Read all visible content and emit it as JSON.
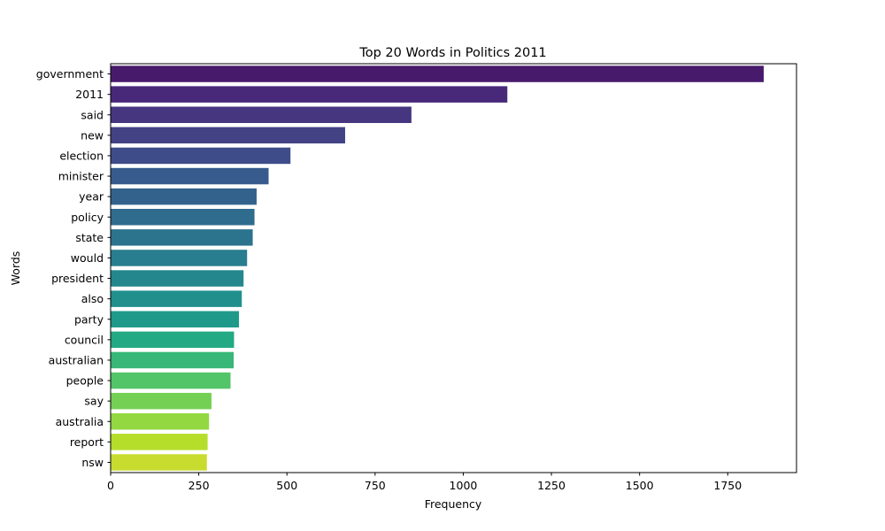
{
  "chart_data": {
    "type": "bar",
    "orientation": "horizontal",
    "title": "Top 20 Words in Politics 2011",
    "xlabel": "Frequency",
    "ylabel": "Words",
    "xlim": [
      0,
      1945
    ],
    "xticks": [
      0,
      250,
      500,
      750,
      1000,
      1250,
      1500,
      1750
    ],
    "grid": false,
    "legend": "none",
    "categories": [
      "government",
      "2011",
      "said",
      "new",
      "election",
      "minister",
      "year",
      "policy",
      "state",
      "would",
      "president",
      "also",
      "party",
      "council",
      "australian",
      "people",
      "say",
      "australia",
      "report",
      "nsw"
    ],
    "values": [
      1852,
      1125,
      853,
      665,
      510,
      448,
      414,
      408,
      403,
      387,
      377,
      372,
      364,
      350,
      349,
      340,
      286,
      279,
      275,
      273
    ],
    "colors": [
      "#481a6c",
      "#482979",
      "#46357f",
      "#424285",
      "#3e4c8a",
      "#385b8d",
      "#33638d",
      "#2f6c8e",
      "#2c738e",
      "#287d8e",
      "#24878e",
      "#21908d",
      "#1f9a8a",
      "#23a983",
      "#38b778",
      "#52c569",
      "#74d055",
      "#93d741",
      "#b5de2b",
      "#c8dc30"
    ]
  }
}
